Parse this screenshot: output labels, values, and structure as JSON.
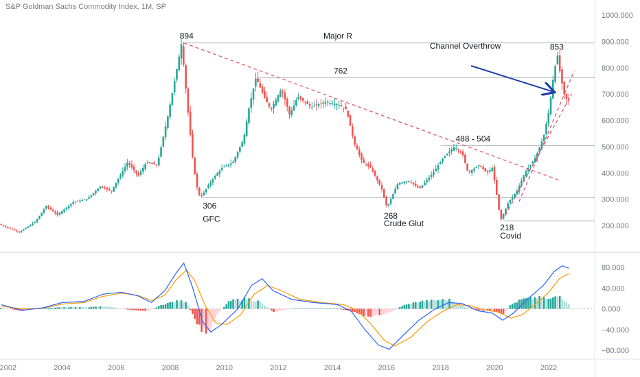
{
  "header": {
    "title": "S&P Goldman Sachs Commodity Index, 1M, SP"
  },
  "colors": {
    "up": "#26a69a",
    "down": "#ef5350",
    "hist_up_strong": "#26a69a",
    "hist_up_weak": "#b2dfdb",
    "hist_down_strong": "#ef5350",
    "hist_down_weak": "#ffcdd2",
    "macd_line": "#2962ff",
    "signal_line": "#ff9800",
    "trendline": "#e0566c",
    "arrow": "#1e3fa8",
    "hline": "#b0b3ba",
    "axis_text": "#787b86",
    "label_text": "#131722"
  },
  "chart_data": [
    {
      "type": "candlestick",
      "title": "S&P Goldman Sachs Commodity Index, 1M, SP",
      "y_ticks": [
        "200.000",
        "300.000",
        "400.000",
        "500.000",
        "600.000",
        "700.000",
        "800.000",
        "900.000",
        "1000.000"
      ],
      "x_ticks": [
        "2002",
        "2004",
        "2006",
        "2008",
        "2010",
        "2012",
        "2014",
        "2016",
        "2018",
        "2020",
        "2022"
      ],
      "ylim": [
        140,
        1050
      ],
      "xlim": [
        2001.7,
        2023.7
      ],
      "path": [
        [
          2001.75,
          205
        ],
        [
          2002.5,
          175
        ],
        [
          2003.1,
          215
        ],
        [
          2003.5,
          275
        ],
        [
          2003.9,
          240
        ],
        [
          2004.5,
          290
        ],
        [
          2005.0,
          300
        ],
        [
          2005.5,
          350
        ],
        [
          2005.9,
          330
        ],
        [
          2006.5,
          440
        ],
        [
          2006.9,
          390
        ],
        [
          2007.2,
          440
        ],
        [
          2007.6,
          430
        ],
        [
          2008.0,
          620
        ],
        [
          2008.3,
          780
        ],
        [
          2008.5,
          894
        ],
        [
          2008.75,
          620
        ],
        [
          2008.95,
          420
        ],
        [
          2009.1,
          330
        ],
        [
          2009.2,
          306
        ],
        [
          2009.6,
          370
        ],
        [
          2010.0,
          420
        ],
        [
          2010.4,
          440
        ],
        [
          2010.8,
          530
        ],
        [
          2011.0,
          650
        ],
        [
          2011.25,
          762
        ],
        [
          2011.6,
          680
        ],
        [
          2011.8,
          640
        ],
        [
          2012.2,
          720
        ],
        [
          2012.5,
          620
        ],
        [
          2012.8,
          690
        ],
        [
          2013.3,
          650
        ],
        [
          2013.8,
          670
        ],
        [
          2014.3,
          660
        ],
        [
          2014.6,
          640
        ],
        [
          2014.9,
          510
        ],
        [
          2015.2,
          440
        ],
        [
          2015.5,
          420
        ],
        [
          2015.9,
          340
        ],
        [
          2016.1,
          268
        ],
        [
          2016.5,
          360
        ],
        [
          2016.9,
          370
        ],
        [
          2017.3,
          340
        ],
        [
          2017.8,
          400
        ],
        [
          2018.2,
          460
        ],
        [
          2018.6,
          500
        ],
        [
          2018.9,
          470
        ],
        [
          2019.1,
          400
        ],
        [
          2019.5,
          430
        ],
        [
          2019.8,
          400
        ],
        [
          2020.0,
          420
        ],
        [
          2020.2,
          290
        ],
        [
          2020.3,
          218
        ],
        [
          2020.6,
          290
        ],
        [
          2020.9,
          330
        ],
        [
          2021.2,
          400
        ],
        [
          2021.6,
          460
        ],
        [
          2021.9,
          540
        ],
        [
          2022.1,
          640
        ],
        [
          2022.25,
          760
        ],
        [
          2022.4,
          853
        ],
        [
          2022.5,
          780
        ],
        [
          2022.65,
          700
        ],
        [
          2022.75,
          680
        ]
      ],
      "horizontal_levels": [
        894,
        762,
        504,
        306,
        218
      ],
      "trendlines": [
        {
          "from": [
            2008.5,
            894
          ],
          "to": [
            2022.4,
            372
          ]
        },
        {
          "from": [
            2020.4,
            240
          ],
          "to": [
            2022.85,
            700
          ]
        },
        {
          "from": [
            2020.9,
            290
          ],
          "to": [
            2022.95,
            790
          ]
        }
      ],
      "annotations": [
        {
          "text": "894",
          "x": 2008.4,
          "y": 894,
          "anchor": "start"
        },
        {
          "text": "Major R",
          "x": 2014.2,
          "y": 894,
          "anchor": "middle"
        },
        {
          "text": "762",
          "x": 2014.3,
          "y": 762,
          "anchor": "middle"
        },
        {
          "text": "Channel Overthrow",
          "x": 2017.6,
          "y": 810,
          "anchor": "start"
        },
        {
          "text": "853",
          "x": 2022.3,
          "y": 853,
          "anchor": "middle"
        },
        {
          "text": "488 - 504",
          "x": 2019.2,
          "y": 504,
          "anchor": "middle"
        },
        {
          "text": "306",
          "x": 2009.2,
          "y": 306,
          "anchor": "start"
        },
        {
          "text": "GFC",
          "x": 2009.2,
          "y": 306,
          "anchor": "start"
        },
        {
          "text": "268",
          "x": 2015.9,
          "y": 268,
          "anchor": "start"
        },
        {
          "text": "Crude Glut",
          "x": 2015.9,
          "y": 268,
          "anchor": "start"
        },
        {
          "text": "218",
          "x": 2020.2,
          "y": 218,
          "anchor": "start"
        },
        {
          "text": "Covid",
          "x": 2020.2,
          "y": 218,
          "anchor": "start"
        }
      ]
    },
    {
      "type": "macd",
      "y_ticks": [
        "80.000",
        "40.000",
        "0.000",
        "−40.000",
        "−80.000"
      ],
      "ylim": [
        -95,
        100
      ],
      "macd_line": [
        [
          2001.75,
          8
        ],
        [
          2002.5,
          -3
        ],
        [
          2003.3,
          2
        ],
        [
          2004.0,
          12
        ],
        [
          2004.8,
          14
        ],
        [
          2005.5,
          28
        ],
        [
          2006.2,
          32
        ],
        [
          2006.8,
          25
        ],
        [
          2007.3,
          12
        ],
        [
          2007.8,
          35
        ],
        [
          2008.2,
          68
        ],
        [
          2008.5,
          88
        ],
        [
          2008.8,
          45
        ],
        [
          2009.2,
          -25
        ],
        [
          2009.5,
          -45
        ],
        [
          2009.9,
          -30
        ],
        [
          2010.5,
          0
        ],
        [
          2011.0,
          45
        ],
        [
          2011.4,
          58
        ],
        [
          2011.8,
          35
        ],
        [
          2012.5,
          18
        ],
        [
          2013.3,
          12
        ],
        [
          2014.2,
          8
        ],
        [
          2014.7,
          -5
        ],
        [
          2015.2,
          -40
        ],
        [
          2015.7,
          -70
        ],
        [
          2016.1,
          -78
        ],
        [
          2016.6,
          -52
        ],
        [
          2017.2,
          -22
        ],
        [
          2017.8,
          0
        ],
        [
          2018.3,
          12
        ],
        [
          2018.8,
          10
        ],
        [
          2019.4,
          -4
        ],
        [
          2019.9,
          -8
        ],
        [
          2020.3,
          -22
        ],
        [
          2020.7,
          -8
        ],
        [
          2021.2,
          18
        ],
        [
          2021.8,
          45
        ],
        [
          2022.2,
          72
        ],
        [
          2022.5,
          83
        ],
        [
          2022.75,
          78
        ]
      ],
      "signal_line": [
        [
          2001.75,
          5
        ],
        [
          2002.5,
          0
        ],
        [
          2003.3,
          1
        ],
        [
          2004.0,
          9
        ],
        [
          2004.8,
          12
        ],
        [
          2005.5,
          24
        ],
        [
          2006.2,
          30
        ],
        [
          2006.8,
          26
        ],
        [
          2007.3,
          16
        ],
        [
          2007.8,
          26
        ],
        [
          2008.2,
          55
        ],
        [
          2008.6,
          75
        ],
        [
          2008.9,
          55
        ],
        [
          2009.3,
          5
        ],
        [
          2009.7,
          -28
        ],
        [
          2010.1,
          -30
        ],
        [
          2010.6,
          -12
        ],
        [
          2011.1,
          28
        ],
        [
          2011.6,
          45
        ],
        [
          2012.1,
          35
        ],
        [
          2012.8,
          18
        ],
        [
          2013.6,
          12
        ],
        [
          2014.4,
          8
        ],
        [
          2014.9,
          -2
        ],
        [
          2015.4,
          -28
        ],
        [
          2015.9,
          -60
        ],
        [
          2016.3,
          -72
        ],
        [
          2016.9,
          -55
        ],
        [
          2017.5,
          -25
        ],
        [
          2018.1,
          -4
        ],
        [
          2018.6,
          8
        ],
        [
          2019.1,
          6
        ],
        [
          2019.6,
          -2
        ],
        [
          2020.1,
          -6
        ],
        [
          2020.6,
          -18
        ],
        [
          2021.0,
          -12
        ],
        [
          2021.5,
          8
        ],
        [
          2022.0,
          32
        ],
        [
          2022.4,
          58
        ],
        [
          2022.75,
          68
        ]
      ],
      "histogram_profile": [
        [
          2001.75,
          2
        ],
        [
          2002.5,
          -4
        ],
        [
          2003.3,
          1
        ],
        [
          2004.0,
          3
        ],
        [
          2005.0,
          3
        ],
        [
          2005.6,
          5
        ],
        [
          2006.5,
          -2
        ],
        [
          2007.2,
          -4
        ],
        [
          2007.8,
          10
        ],
        [
          2008.3,
          15
        ],
        [
          2008.6,
          14
        ],
        [
          2008.9,
          -20
        ],
        [
          2009.1,
          -38
        ],
        [
          2009.4,
          -48
        ],
        [
          2009.7,
          -12
        ],
        [
          2010.2,
          15
        ],
        [
          2010.8,
          20
        ],
        [
          2011.3,
          14
        ],
        [
          2011.8,
          -6
        ],
        [
          2012.5,
          0
        ],
        [
          2013.3,
          0
        ],
        [
          2014.2,
          0
        ],
        [
          2014.8,
          -6
        ],
        [
          2015.3,
          -15
        ],
        [
          2015.7,
          -12
        ],
        [
          2016.1,
          -8
        ],
        [
          2016.6,
          6
        ],
        [
          2017.2,
          14
        ],
        [
          2017.8,
          16
        ],
        [
          2018.3,
          18
        ],
        [
          2018.8,
          5
        ],
        [
          2019.4,
          -4
        ],
        [
          2019.9,
          -3
        ],
        [
          2020.3,
          -12
        ],
        [
          2020.6,
          8
        ],
        [
          2021.0,
          18
        ],
        [
          2021.6,
          22
        ],
        [
          2022.0,
          18
        ],
        [
          2022.4,
          25
        ],
        [
          2022.75,
          10
        ]
      ]
    }
  ]
}
